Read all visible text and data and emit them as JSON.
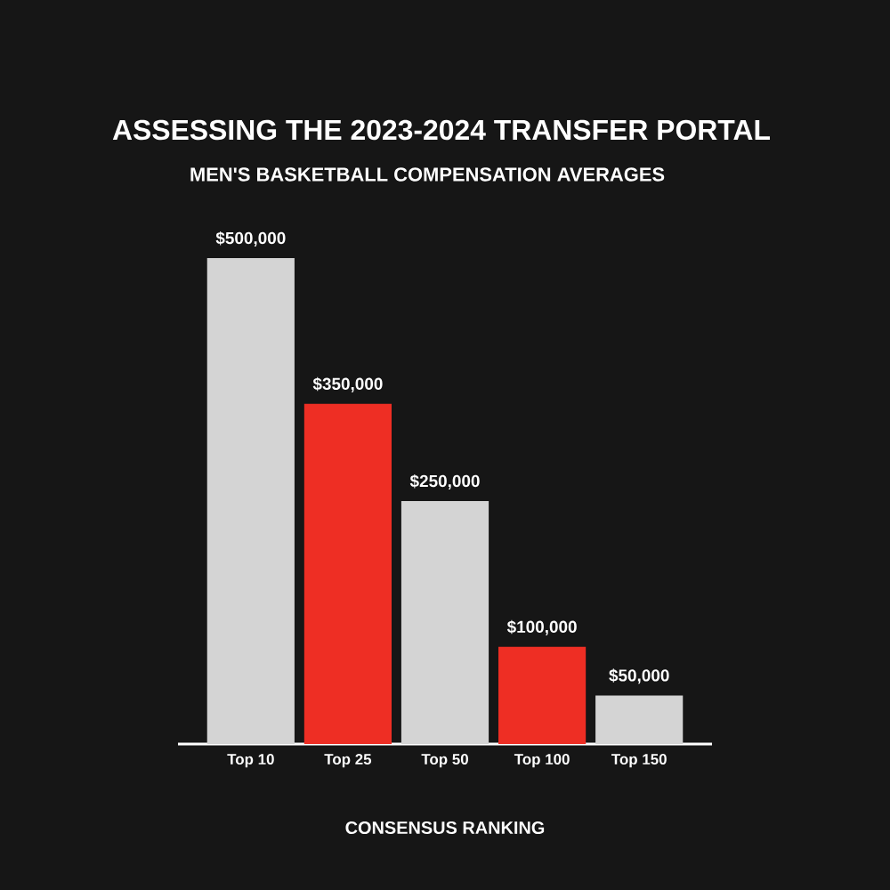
{
  "chart_data": {
    "type": "bar",
    "title": "ASSESSING THE 2023-2024 TRANSFER PORTAL",
    "subtitle": "MEN'S BASKETBALL COMPENSATION AVERAGES",
    "xlabel": "CONSENSUS RANKING",
    "categories": [
      "Top 10",
      "Top 25",
      "Top 50",
      "Top 100",
      "Top 150"
    ],
    "values": [
      500000,
      350000,
      250000,
      100000,
      50000
    ],
    "colors": [
      "#d4d4d4",
      "#ee2e24",
      "#d4d4d4",
      "#ee2e24",
      "#d4d4d4"
    ],
    "value_labels": [
      "$500,000",
      "$350,000",
      "$250,000",
      "$100,000",
      "$50,000"
    ]
  }
}
